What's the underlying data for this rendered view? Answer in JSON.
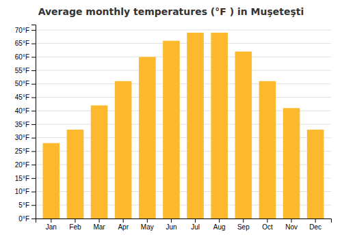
{
  "chart_data": {
    "type": "bar",
    "title": "Average monthly temperatures (°F ) in Muşeteşti",
    "categories": [
      "Jan",
      "Feb",
      "Mar",
      "Apr",
      "May",
      "Jun",
      "Jul",
      "Aug",
      "Sep",
      "Oct",
      "Nov",
      "Dec"
    ],
    "values": [
      28,
      33,
      42,
      51,
      60,
      66,
      69,
      69,
      62,
      51,
      41,
      33
    ],
    "color": "#FDB92E",
    "ylim": [
      0,
      72
    ],
    "yticks": [
      {
        "value": 0,
        "label": "0°F"
      },
      {
        "value": 5,
        "label": "5°F"
      },
      {
        "value": 10,
        "label": "10°F"
      },
      {
        "value": 15,
        "label": "15°F"
      },
      {
        "value": 20,
        "label": "20°F"
      },
      {
        "value": 25,
        "label": "25°F"
      },
      {
        "value": 30,
        "label": "30°F"
      },
      {
        "value": 35,
        "label": "35°F"
      },
      {
        "value": 40,
        "label": "40°F"
      },
      {
        "value": 45,
        "label": "45°F"
      },
      {
        "value": 50,
        "label": "50°F"
      },
      {
        "value": 55,
        "label": "55°F"
      },
      {
        "value": 60,
        "label": "60°F"
      },
      {
        "value": 65,
        "label": "65°F"
      },
      {
        "value": 70,
        "label": "70°F"
      }
    ],
    "grid": true
  }
}
